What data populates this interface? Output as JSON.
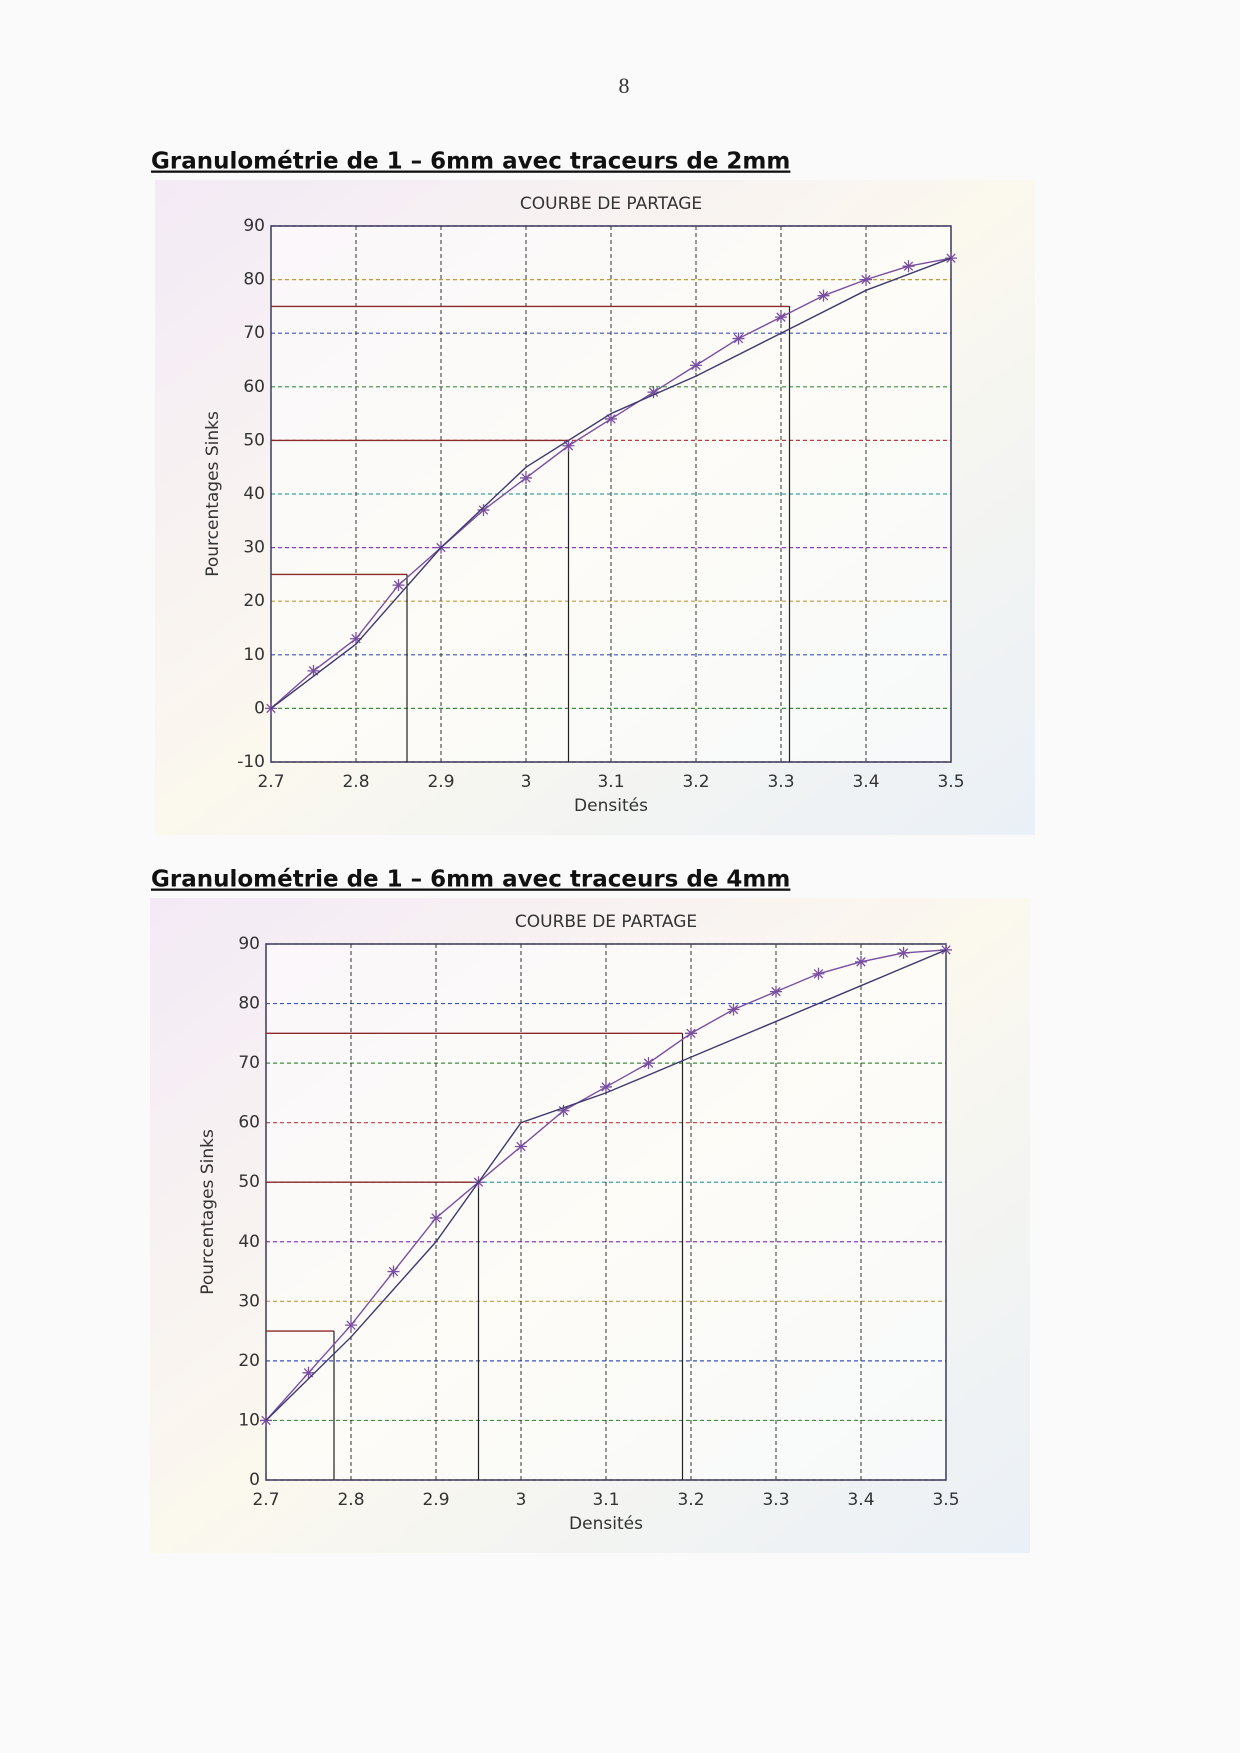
{
  "page_number": "8",
  "chart_data": [
    {
      "type": "line",
      "heading": "Granulométrie de 1 – 6mm avec traceurs de 2mm",
      "title": "COURBE DE PARTAGE",
      "x_label": "Densités",
      "y_label": "Pourcentages Sinks",
      "xlim": [
        2.7,
        3.5
      ],
      "ylim": [
        -10,
        90
      ],
      "xticks": [
        2.7,
        2.8,
        2.9,
        3,
        3.1,
        3.2,
        3.3,
        3.4,
        3.5
      ],
      "yticks": [
        -10,
        0,
        10,
        20,
        30,
        40,
        50,
        60,
        70,
        80,
        90
      ],
      "grid": true,
      "series": [
        {
          "color": "#7b4fa0",
          "marker": "star",
          "x": [
            2.7,
            2.75,
            2.8,
            2.85,
            2.9,
            2.95,
            3.0,
            3.05,
            3.1,
            3.15,
            3.2,
            3.25,
            3.3,
            3.35,
            3.4,
            3.45,
            3.5
          ],
          "values": [
            0,
            7,
            13,
            23,
            30,
            37,
            43,
            49,
            54,
            59,
            64,
            69,
            73,
            77,
            80,
            82.5,
            84
          ]
        },
        {
          "color": "#3d3a6e",
          "marker": "none",
          "x": [
            2.7,
            2.8,
            2.9,
            3.0,
            3.1,
            3.2,
            3.3,
            3.4,
            3.5
          ],
          "values": [
            0,
            12,
            30,
            45,
            55,
            62,
            70,
            78,
            84
          ]
        }
      ],
      "cut_points": [
        {
          "x": 2.86,
          "y": 25
        },
        {
          "x": 3.05,
          "y": 50
        },
        {
          "x": 3.31,
          "y": 75
        }
      ]
    },
    {
      "type": "line",
      "heading": "Granulométrie de 1 – 6mm avec traceurs de 4mm",
      "title": "COURBE DE PARTAGE",
      "x_label": "Densités",
      "y_label": "Pourcentages Sinks",
      "xlim": [
        2.7,
        3.5
      ],
      "ylim": [
        0,
        90
      ],
      "xticks": [
        2.7,
        2.8,
        2.9,
        3,
        3.1,
        3.2,
        3.3,
        3.4,
        3.5
      ],
      "yticks": [
        0,
        10,
        20,
        30,
        40,
        50,
        60,
        70,
        80,
        90
      ],
      "grid": true,
      "series": [
        {
          "color": "#7b4fa0",
          "marker": "star",
          "x": [
            2.7,
            2.75,
            2.8,
            2.85,
            2.9,
            2.95,
            3.0,
            3.05,
            3.1,
            3.15,
            3.2,
            3.25,
            3.3,
            3.35,
            3.4,
            3.45,
            3.5
          ],
          "values": [
            10,
            18,
            26,
            35,
            44,
            50,
            56,
            62,
            66,
            70,
            75,
            79,
            82,
            85,
            87,
            88.5,
            89
          ]
        },
        {
          "color": "#3d3a6e",
          "marker": "none",
          "x": [
            2.7,
            2.8,
            2.9,
            3.0,
            3.1,
            3.2,
            3.3,
            3.4,
            3.5
          ],
          "values": [
            10,
            24,
            40,
            60,
            65,
            71,
            77,
            83,
            89
          ]
        }
      ],
      "cut_points": [
        {
          "x": 2.78,
          "y": 25
        },
        {
          "x": 2.95,
          "y": 50
        },
        {
          "x": 3.19,
          "y": 75
        }
      ]
    }
  ]
}
